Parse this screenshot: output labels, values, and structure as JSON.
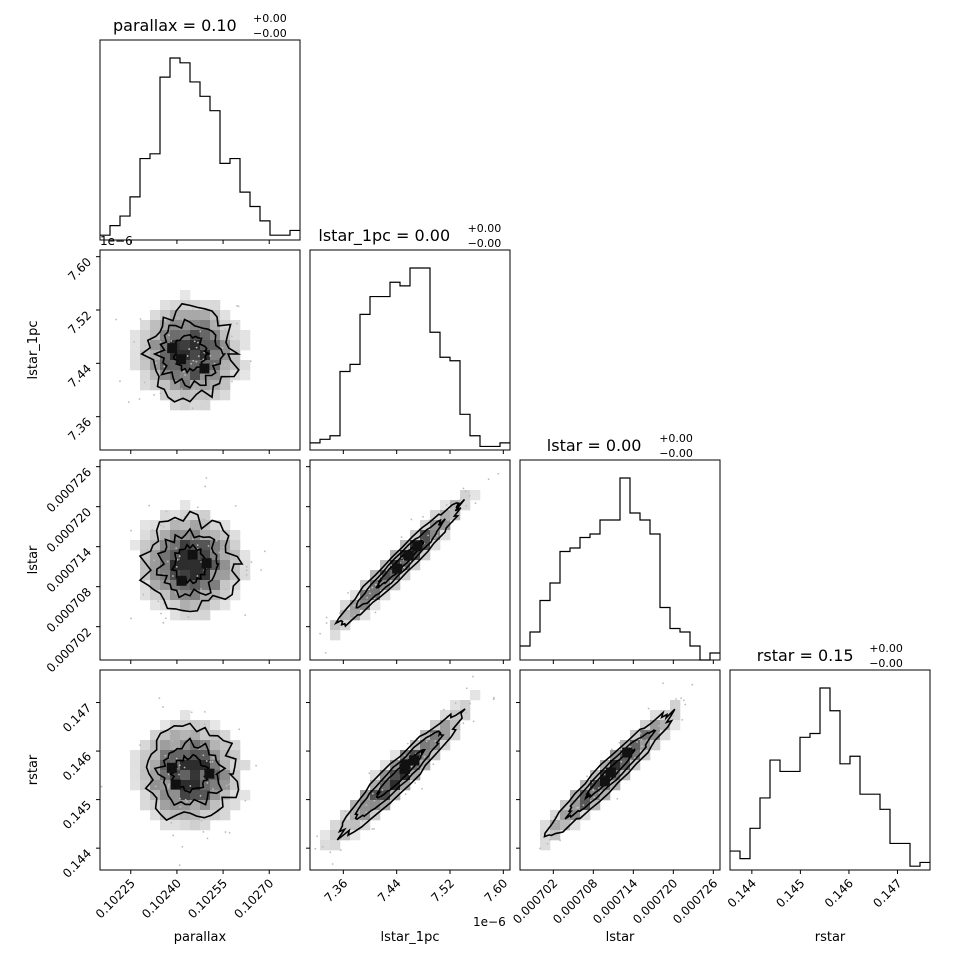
{
  "chart_data": {
    "type": "corner",
    "parameters": [
      "parallax",
      "lstar_1pc",
      "lstar",
      "rstar"
    ],
    "titles": [
      {
        "main": "parallax = 0.10",
        "sup": "+0.00",
        "sub": "−0.00"
      },
      {
        "main": "lstar_1pc = 0.00",
        "sup": "+0.00",
        "sub": "−0.00"
      },
      {
        "main": "lstar = 0.00",
        "sup": "+0.00",
        "sub": "−0.00"
      },
      {
        "main": "rstar = 0.15",
        "sup": "+0.00",
        "sub": "−0.00"
      }
    ],
    "ranges": [
      [
        0.10215,
        0.1028
      ],
      [
        7.31e-06,
        7.61e-06
      ],
      [
        0.000697,
        0.000727
      ],
      [
        0.14355,
        0.14767
      ]
    ],
    "ticks": [
      {
        "values": [
          0.10225,
          0.1024,
          0.10255,
          0.1027
        ],
        "labels": [
          "0.10225",
          "0.10240",
          "0.10255",
          "0.10270"
        ]
      },
      {
        "values": [
          7.36e-06,
          7.44e-06,
          7.52e-06,
          7.6e-06
        ],
        "labels": [
          "7.36",
          "7.44",
          "7.52",
          "7.60"
        ],
        "offset": "1e−6"
      },
      {
        "values": [
          0.000702,
          0.000708,
          0.000714,
          0.00072,
          0.000726
        ],
        "labels": [
          "0.000702",
          "0.000708",
          "0.000714",
          "0.000720",
          "0.000726"
        ]
      },
      {
        "values": [
          0.144,
          0.145,
          0.146,
          0.147
        ],
        "labels": [
          "0.144",
          "0.145",
          "0.146",
          "0.147"
        ]
      }
    ],
    "histograms": [
      {
        "parameter": "parallax",
        "edges_range": [
          0.10215,
          0.1028
        ],
        "counts": [
          1,
          3,
          5,
          9,
          17,
          18,
          34,
          38,
          37,
          33,
          30,
          27,
          16,
          17,
          10,
          7,
          4,
          1,
          1,
          2
        ]
      },
      {
        "parameter": "lstar_1pc",
        "edges_range": [
          7.31e-06,
          7.61e-06
        ],
        "counts": [
          2,
          3,
          4,
          22,
          24,
          38,
          43,
          43,
          47,
          46,
          51,
          51,
          33,
          26,
          25,
          10,
          4,
          1,
          1,
          2
        ]
      },
      {
        "parameter": "lstar",
        "edges_range": [
          0.000697,
          0.000727
        ],
        "counts": [
          4,
          8,
          17,
          22,
          31,
          32,
          35,
          36,
          40,
          40,
          52,
          42,
          40,
          36,
          15,
          9,
          8,
          4,
          0,
          2
        ]
      },
      {
        "parameter": "rstar",
        "edges_range": [
          0.14355,
          0.14767
        ],
        "counts": [
          5,
          3,
          11,
          19,
          29,
          26,
          26,
          35,
          36,
          48,
          42,
          28,
          30,
          20,
          20,
          16,
          7,
          7,
          1,
          2
        ]
      }
    ],
    "pairs": [
      {
        "x": "parallax",
        "y": "lstar_1pc",
        "correlation": 0.0
      },
      {
        "x": "parallax",
        "y": "lstar",
        "correlation": 0.0
      },
      {
        "x": "lstar_1pc",
        "y": "lstar",
        "correlation": 0.97
      },
      {
        "x": "parallax",
        "y": "rstar",
        "correlation": 0.0
      },
      {
        "x": "lstar_1pc",
        "y": "rstar",
        "correlation": 0.95
      },
      {
        "x": "lstar",
        "y": "rstar",
        "correlation": 0.96
      }
    ],
    "xlabels": [
      "parallax",
      "lstar_1pc",
      "lstar",
      "rstar"
    ],
    "ylabels": [
      "lstar_1pc",
      "lstar",
      "rstar"
    ],
    "histogram_style": "step",
    "contour_color": "#000000",
    "density_colormap": "greys"
  }
}
